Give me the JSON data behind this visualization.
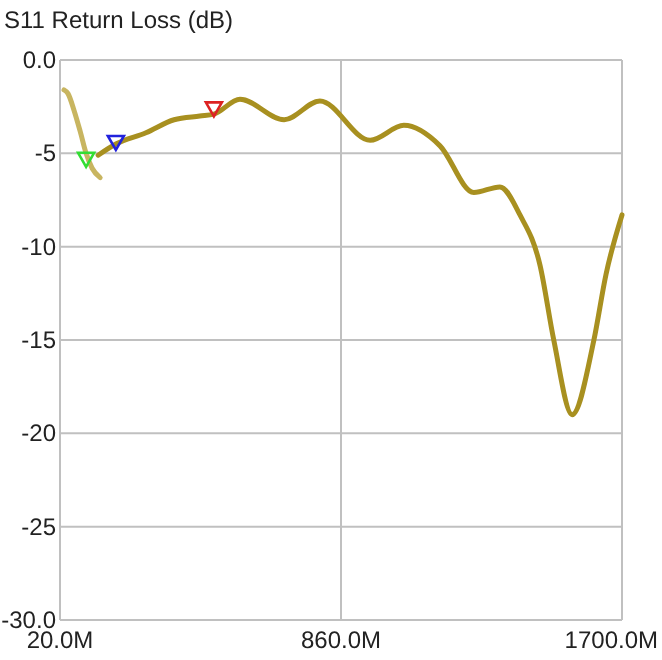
{
  "chart_data": {
    "type": "line",
    "title": "S11 Return Loss (dB)",
    "xlim": [
      20,
      1700
    ],
    "xticks": [
      {
        "value": 20,
        "label": "20.0M"
      },
      {
        "value": 860,
        "label": "860.0M"
      },
      {
        "value": 1700,
        "label": "1700.0M"
      }
    ],
    "ylim": [
      -30,
      0
    ],
    "yticks": [
      {
        "value": 0,
        "label": "0.0"
      },
      -5,
      -10,
      -15,
      -20,
      -25,
      {
        "value": -30,
        "label": "-30.0"
      }
    ],
    "grid": true,
    "series": [
      {
        "color": "#c8b560",
        "x": [
          32,
          44,
          62,
          80,
          98,
          116,
          140
        ],
        "values": [
          -1.6,
          -1.8,
          -2.7,
          -3.8,
          -5.0,
          -5.8,
          -6.3
        ]
      },
      {
        "color": "#a89020",
        "x": [
          134,
          187,
          277,
          361,
          438,
          480,
          558,
          690,
          797,
          947,
          1048,
          1156,
          1257,
          1335,
          1395,
          1455,
          1496,
          1551,
          1616,
          1652,
          1700
        ],
        "values": [
          -5.1,
          -4.5,
          -3.9,
          -3.2,
          -3.0,
          -2.9,
          -2.1,
          -3.2,
          -2.2,
          -4.3,
          -3.5,
          -4.6,
          -7.1,
          -6.8,
          -8.3,
          -11,
          -15.0,
          -19.0,
          -15.0,
          -11.5,
          -8.3
        ]
      },
      {
        "type": "scatter",
        "marker": "triangle",
        "color": "#33dd33",
        "x": [
          98
        ],
        "values": [
          -5.4
        ]
      },
      {
        "type": "scatter",
        "marker": "triangle",
        "color": "#2222dd",
        "x": [
          187
        ],
        "values": [
          -4.5
        ]
      },
      {
        "type": "scatter",
        "marker": "triangle",
        "color": "#dd2222",
        "x": [
          480
        ],
        "values": [
          -2.7
        ]
      }
    ]
  }
}
